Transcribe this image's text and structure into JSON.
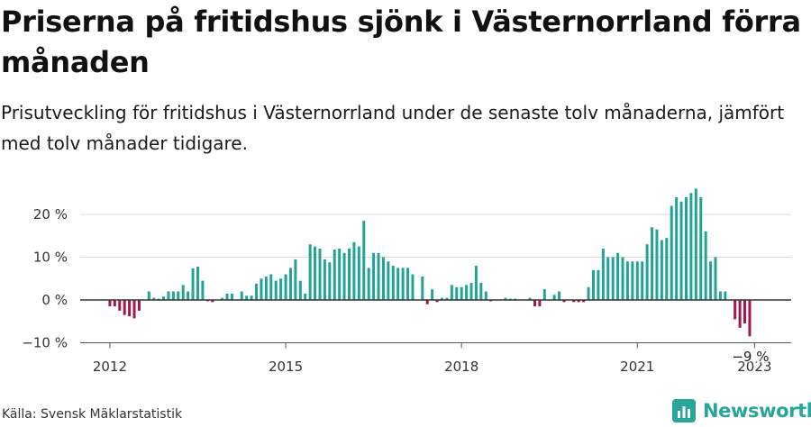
{
  "title": "Priserna på fritidshus sjönk i Västernorrland förra månaden",
  "subtitle": "Prisutveckling för fritidshus i Västernorrland under de senaste tolv månaderna, jämfört med tolv månader tidigare.",
  "source": "Källa: Svensk Mäklarstatistik",
  "brand": {
    "name": "Newsworthy",
    "icon": "newsworthy-logo-icon",
    "color": "#2aa59a"
  },
  "colors": {
    "positive": "#23a396",
    "negative": "#a3174f",
    "zero_line": "#333333",
    "grid": "#dddddd"
  },
  "chart_data": {
    "type": "bar",
    "x_start": "2011-12",
    "x_end": "2023-03",
    "frequency": "monthly",
    "ylabel": "",
    "unit": "%",
    "ylim": [
      -10,
      26
    ],
    "yticks": [
      -10,
      0,
      10,
      20
    ],
    "ytick_labels": [
      "−10 %",
      "0 %",
      "10 %",
      "20 %"
    ],
    "xticks": [
      "2012-01",
      "2015-01",
      "2018-01",
      "2021-01",
      "2023-01"
    ],
    "xtick_labels": [
      "2012",
      "2015",
      "2018",
      "2021",
      "2023"
    ],
    "grid": true,
    "last_value_label": "−9 %",
    "values": [
      null,
      -1.5,
      -1.5,
      -2.5,
      -3.5,
      -3.8,
      -4.3,
      -2.5,
      0,
      2,
      0.5,
      0.3,
      0.8,
      2,
      2,
      2,
      3.5,
      2,
      7.4,
      7.8,
      4.5,
      -0.3,
      -0.5,
      0,
      0.5,
      1.5,
      1.5,
      0,
      2,
      1,
      1,
      3.8,
      5,
      5.5,
      6,
      4.5,
      5,
      6,
      7.5,
      9.5,
      4.5,
      1.5,
      13,
      12.5,
      12,
      9.5,
      8.8,
      11.8,
      12,
      11,
      12,
      13.5,
      12.5,
      18.5,
      7.5,
      11,
      11,
      10,
      9,
      8,
      7.5,
      7.5,
      7.5,
      6,
      0,
      5.5,
      -1,
      2.5,
      -0.5,
      0.5,
      0.5,
      3.5,
      3,
      3,
      3.5,
      4,
      8,
      4,
      2,
      -0.3,
      0,
      0,
      0.5,
      0.3,
      0.3,
      0,
      0,
      0.5,
      -1.5,
      -1.5,
      2.5,
      0,
      1.2,
      2,
      -0.5,
      0,
      -0.5,
      -0.5,
      -0.5,
      3,
      7,
      7,
      12,
      10,
      10,
      11,
      10,
      9,
      9,
      9,
      9,
      13,
      17,
      16.5,
      14,
      14.5,
      22,
      24,
      23,
      24,
      25,
      26,
      24,
      16,
      9,
      10,
      2,
      2,
      0,
      -4.5,
      -6.5,
      -5.5,
      -8.5
    ]
  }
}
